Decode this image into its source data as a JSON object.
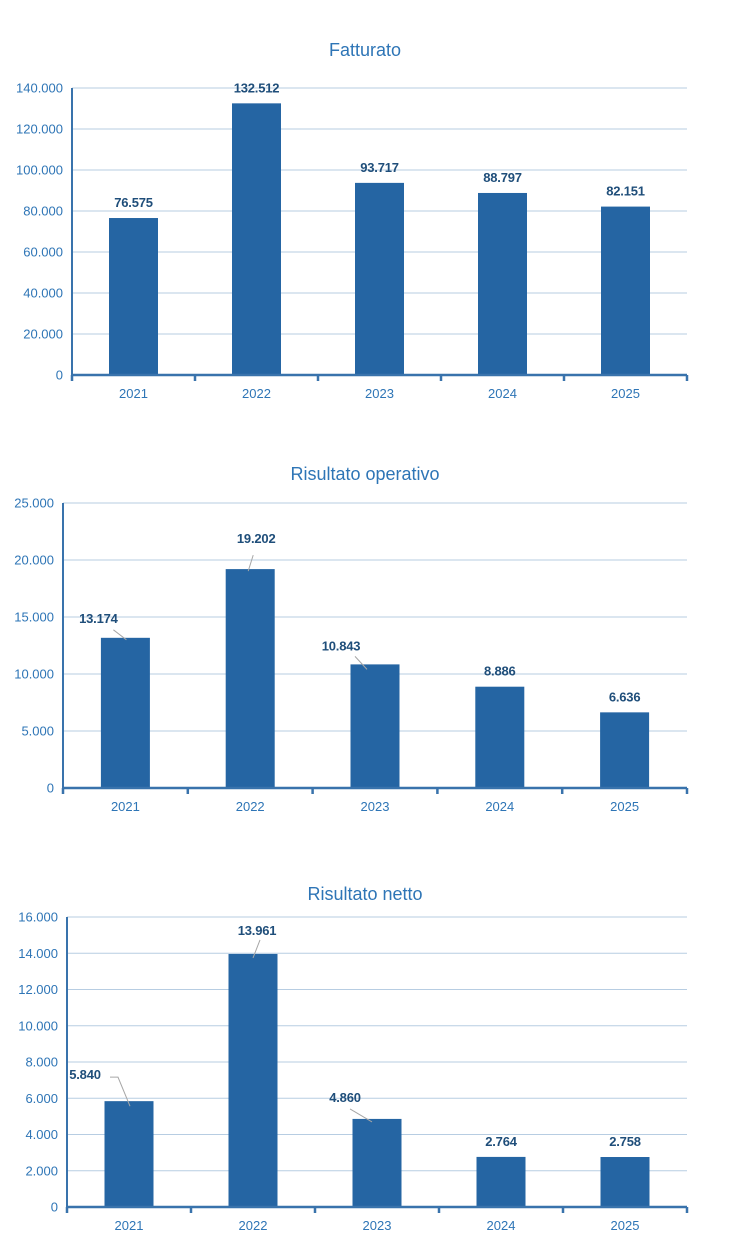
{
  "page": {
    "background": "#ffffff"
  },
  "colors": {
    "bar": "#2565A3",
    "data_label": "#1F4E7A",
    "axis_text": "#2E75B6",
    "title_text": "#2E75B6",
    "gridline": "#B7CDE2",
    "axis_line": "#3973AC",
    "leader_line": "#A6A6A6"
  },
  "chart_data": [
    {
      "type": "bar",
      "title": "Fatturato",
      "categories": [
        "2021",
        "2022",
        "2023",
        "2024",
        "2025"
      ],
      "values": [
        76575,
        132512,
        93717,
        88797,
        82151
      ],
      "value_labels": [
        "76.575",
        "132.512",
        "93.717",
        "88.797",
        "82.151"
      ],
      "ylim": [
        0,
        140000
      ],
      "ytick_step": 20000,
      "ytick_labels": [
        "0",
        "20.000",
        "40.000",
        "60.000",
        "80.000",
        "100.000",
        "120.000",
        "140.000"
      ],
      "grid": true,
      "legend_position": "none"
    },
    {
      "type": "bar",
      "title": "Risultato operativo",
      "categories": [
        "2021",
        "2022",
        "2023",
        "2024",
        "2025"
      ],
      "values": [
        13174,
        19202,
        10843,
        8886,
        6636
      ],
      "value_labels": [
        "13.174",
        "19.202",
        "10.843",
        "8.886",
        "6.636"
      ],
      "ylim": [
        0,
        25000
      ],
      "ytick_step": 5000,
      "ytick_labels": [
        "0",
        "5.000",
        "10.000",
        "15.000",
        "20.000",
        "25.000"
      ],
      "grid": true,
      "legend_position": "none"
    },
    {
      "type": "bar",
      "title": "Risultato netto",
      "categories": [
        "2021",
        "2022",
        "2023",
        "2024",
        "2025"
      ],
      "values": [
        5840,
        13961,
        4860,
        2764,
        2758
      ],
      "value_labels": [
        "5.840",
        "13.961",
        "4.860",
        "2.764",
        "2.758"
      ],
      "ylim": [
        0,
        16000
      ],
      "ytick_step": 2000,
      "ytick_labels": [
        "0",
        "2.000",
        "4.000",
        "6.000",
        "8.000",
        "10.000",
        "12.000",
        "14.000",
        "16.000"
      ],
      "grid": true,
      "legend_position": "none"
    }
  ]
}
